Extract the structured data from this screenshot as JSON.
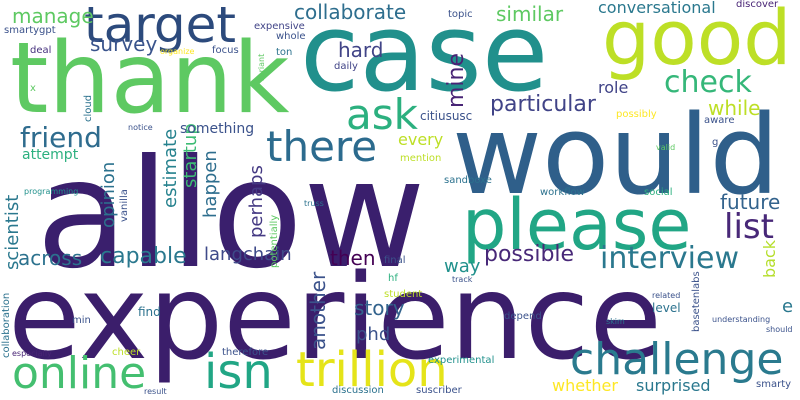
{
  "words": [
    {
      "text": "experience",
      "color": "#3b1e6b"
    },
    {
      "text": "allow",
      "color": "#3a1f6d"
    },
    {
      "text": "would",
      "color": "#2f5f8a"
    },
    {
      "text": "case",
      "color": "#21908c"
    },
    {
      "text": "thank",
      "color": "#5ec962"
    },
    {
      "text": "good",
      "color": "#bddf26"
    },
    {
      "text": "target",
      "color": "#2c4a7c"
    },
    {
      "text": "please",
      "color": "#21a685"
    },
    {
      "text": "challenge",
      "color": "#2a7a8e"
    },
    {
      "text": "trillion",
      "color": "#e5e419"
    },
    {
      "text": "isn",
      "color": "#21a685"
    },
    {
      "text": "online",
      "color": "#44bf70"
    },
    {
      "text": "ask",
      "color": "#2cb07f"
    },
    {
      "text": "there",
      "color": "#2c6b8e"
    },
    {
      "text": "friend",
      "color": "#2f6c8e"
    },
    {
      "text": "check",
      "color": "#35b779"
    },
    {
      "text": "interview",
      "color": "#2a788e"
    },
    {
      "text": "list",
      "color": "#482878"
    },
    {
      "text": "collaborate",
      "color": "#2e6e8e"
    },
    {
      "text": "manage",
      "color": "#5ec962"
    },
    {
      "text": "survey",
      "color": "#3a548c"
    },
    {
      "text": "similar",
      "color": "#5ec962"
    },
    {
      "text": "conversational",
      "color": "#2a788e"
    },
    {
      "text": "hard",
      "color": "#414487"
    },
    {
      "text": "mine",
      "color": "#482475"
    },
    {
      "text": "particular",
      "color": "#404387"
    },
    {
      "text": "role",
      "color": "#404387"
    },
    {
      "text": "while",
      "color": "#bddf26"
    },
    {
      "text": "future",
      "color": "#33638d"
    },
    {
      "text": "capable",
      "color": "#2a788e"
    },
    {
      "text": "langchain",
      "color": "#3e4a89"
    },
    {
      "text": "across",
      "color": "#2c728e"
    },
    {
      "text": "possible",
      "color": "#482878"
    },
    {
      "text": "then",
      "color": "#440154"
    },
    {
      "text": "story",
      "color": "#33638d"
    },
    {
      "text": "every",
      "color": "#bddf26"
    },
    {
      "text": "phd",
      "color": "#3b528b"
    },
    {
      "text": "way",
      "color": "#21918c"
    },
    {
      "text": "whether",
      "color": "#fde725"
    },
    {
      "text": "surprised",
      "color": "#2a788e"
    },
    {
      "text": "another",
      "color": "#3b528b"
    },
    {
      "text": "perhaps",
      "color": "#443983"
    },
    {
      "text": "happen",
      "color": "#2e6e8e"
    },
    {
      "text": "startup",
      "color": "#3dbc74"
    },
    {
      "text": "estimate",
      "color": "#26828e"
    },
    {
      "text": "opinion",
      "color": "#2c728e"
    },
    {
      "text": "scientist",
      "color": "#2a788e"
    },
    {
      "text": "attempt",
      "color": "#2cb07f"
    },
    {
      "text": "something",
      "color": "#3b528b"
    },
    {
      "text": "back",
      "color": "#b5de2b"
    },
    {
      "text": "e",
      "color": "#2a788e"
    },
    {
      "text": "expensive",
      "color": "#414487"
    },
    {
      "text": "whole",
      "color": "#3b528b"
    },
    {
      "text": "topic",
      "color": "#3b528b"
    },
    {
      "text": "discover",
      "color": "#482475"
    },
    {
      "text": "smartygpt",
      "color": "#3b528b"
    },
    {
      "text": "deal",
      "color": "#46327e"
    },
    {
      "text": "organize",
      "color": "#fde725"
    },
    {
      "text": "focus",
      "color": "#3b528b"
    },
    {
      "text": "ton",
      "color": "#2c728e"
    },
    {
      "text": "daily",
      "color": "#414487"
    },
    {
      "text": "variant",
      "color": "#5ec962"
    },
    {
      "text": "cloud",
      "color": "#2c728e"
    },
    {
      "text": "x",
      "color": "#5ec962"
    },
    {
      "text": "notice",
      "color": "#3b528b"
    },
    {
      "text": "citiususc",
      "color": "#3b528b"
    },
    {
      "text": "possibly",
      "color": "#fde725"
    },
    {
      "text": "aware",
      "color": "#3b528b"
    },
    {
      "text": "g",
      "color": "#3b528b"
    },
    {
      "text": "valid",
      "color": "#5ec962"
    },
    {
      "text": "mention",
      "color": "#bddf26"
    },
    {
      "text": "sandboxe",
      "color": "#2c728e"
    },
    {
      "text": "workflow",
      "color": "#2c728e"
    },
    {
      "text": "social",
      "color": "#2cb07f"
    },
    {
      "text": "programming",
      "color": "#21918c"
    },
    {
      "text": "vanilla",
      "color": "#3b528b"
    },
    {
      "text": "truss",
      "color": "#2c728e"
    },
    {
      "text": "potentially",
      "color": "#5ec962"
    },
    {
      "text": "final",
      "color": "#3b528b"
    },
    {
      "text": "hf",
      "color": "#2cb07f"
    },
    {
      "text": "track",
      "color": "#3b528b"
    },
    {
      "text": "student",
      "color": "#bddf26"
    },
    {
      "text": "related",
      "color": "#3b528b"
    },
    {
      "text": "basetenlabs",
      "color": "#3b528b"
    },
    {
      "text": "level",
      "color": "#2c728e"
    },
    {
      "text": "understanding",
      "color": "#3b528b"
    },
    {
      "text": "should",
      "color": "#3b528b"
    },
    {
      "text": "collaboration",
      "color": "#2c728e"
    },
    {
      "text": "min",
      "color": "#3b528b"
    },
    {
      "text": "find",
      "color": "#2c728e"
    },
    {
      "text": "depend",
      "color": "#3b528b"
    },
    {
      "text": "skim",
      "color": "#2c728e"
    },
    {
      "text": "especially",
      "color": "#482475"
    },
    {
      "text": "cheer",
      "color": "#bddf26"
    },
    {
      "text": "therefore",
      "color": "#3b528b"
    },
    {
      "text": "experimental",
      "color": "#21918c"
    },
    {
      "text": "smarty",
      "color": "#3b528b"
    },
    {
      "text": "result",
      "color": "#3b528b"
    },
    {
      "text": "discussion",
      "color": "#2c728e"
    },
    {
      "text": "suscriber",
      "color": "#3b528b"
    }
  ]
}
